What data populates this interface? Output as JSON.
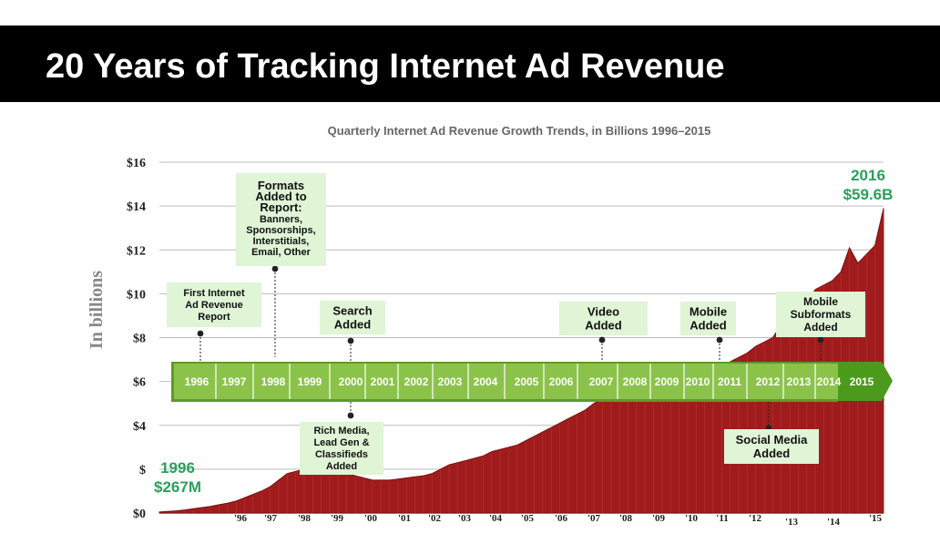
{
  "title": "20 Years of Tracking Internet Ad Revenue",
  "colors": {
    "area": "#a01c1c",
    "area_edge": "#7a1010",
    "timeline": "#8bc34a",
    "timeline_dark": "#5e9a2a",
    "timeline_2015": "#4c9a1c",
    "annotation_bg": "#dff5d6",
    "callout": "#2aa15a"
  },
  "chart_data": {
    "type": "area",
    "title": "Quarterly Internet Ad Revenue Growth Trends, in Billions 1996–2015",
    "xlabel": "",
    "ylabel": "In billions",
    "ylim": [
      0,
      16
    ],
    "grid": true,
    "y_ticks": [
      {
        "v": 0,
        "label": "$0"
      },
      {
        "v": 2,
        "label": "$"
      },
      {
        "v": 4,
        "label": "$4"
      },
      {
        "v": 6,
        "label": "$6"
      },
      {
        "v": 8,
        "label": "$8"
      },
      {
        "v": 10,
        "label": "$10"
      },
      {
        "v": 12,
        "label": "$12"
      },
      {
        "v": 14,
        "label": "$14"
      },
      {
        "v": 16,
        "label": "$16"
      }
    ],
    "x_tick_labels": [
      "'96",
      "'97",
      "'98",
      "'99",
      "'00",
      "'01",
      "'02",
      "'03",
      "'04",
      "'05",
      "'06",
      "'07",
      "'08",
      "'09",
      "'10",
      "'11",
      "'12",
      "'13",
      "'14",
      "'15"
    ],
    "series": [
      {
        "values": [
          0.05,
          0.07,
          0.1,
          0.14,
          0.2,
          0.25,
          0.3,
          0.38,
          0.45,
          0.55,
          0.7,
          0.85,
          1.0,
          1.2,
          1.5,
          1.8,
          1.9,
          2.0,
          2.0,
          2.1,
          2.0,
          1.9,
          1.8,
          1.7,
          1.6,
          1.5,
          1.5,
          1.5,
          1.55,
          1.6,
          1.65,
          1.7,
          1.8,
          2.0,
          2.2,
          2.3,
          2.4,
          2.5,
          2.6,
          2.8,
          2.9,
          3.0,
          3.1,
          3.3,
          3.5,
          3.7,
          3.9,
          4.1,
          4.3,
          4.5,
          4.7,
          5.0,
          5.2,
          5.4,
          5.6,
          5.8,
          5.8,
          5.7,
          5.5,
          5.3,
          5.4,
          5.6,
          5.8,
          6.0,
          6.2,
          6.4,
          6.6,
          6.9,
          7.1,
          7.3,
          7.6,
          7.8,
          8.0,
          8.6,
          9.0,
          8.9,
          9.6,
          10.2,
          10.4,
          10.6,
          11.0,
          12.1,
          11.4,
          11.8,
          12.2,
          13.9
        ]
      }
    ],
    "annotations": [
      {
        "text": "1996\n$267M"
      },
      {
        "text": "2016\n$59.6B"
      }
    ]
  },
  "timeline_years": [
    "1996",
    "1997",
    "1998",
    "1999",
    "2000",
    "2001",
    "2002",
    "2003",
    "2004",
    "2005",
    "2006",
    "2007",
    "2008",
    "2009",
    "2010",
    "2011",
    "2012",
    "2013",
    "2014",
    "2015"
  ],
  "annotations": [
    {
      "lines": [
        "First  Internet",
        "Ad Revenue",
        "Report"
      ]
    },
    {
      "lines": [
        "Formats",
        "Added to",
        "Report:",
        "Banners,",
        "Sponsorships,",
        "Interstitials,",
        "Email, Other"
      ]
    },
    {
      "lines": [
        "Search",
        "Added"
      ]
    },
    {
      "lines": [
        "Rich Media,",
        "Lead Gen &",
        "Classifieds",
        "Added"
      ]
    },
    {
      "lines": [
        "Video",
        "Added"
      ]
    },
    {
      "lines": [
        "Mobile",
        "Added"
      ]
    },
    {
      "lines": [
        "Mobile",
        "Subformats",
        "Added"
      ]
    },
    {
      "lines": [
        "Social Media",
        "Added"
      ]
    }
  ]
}
